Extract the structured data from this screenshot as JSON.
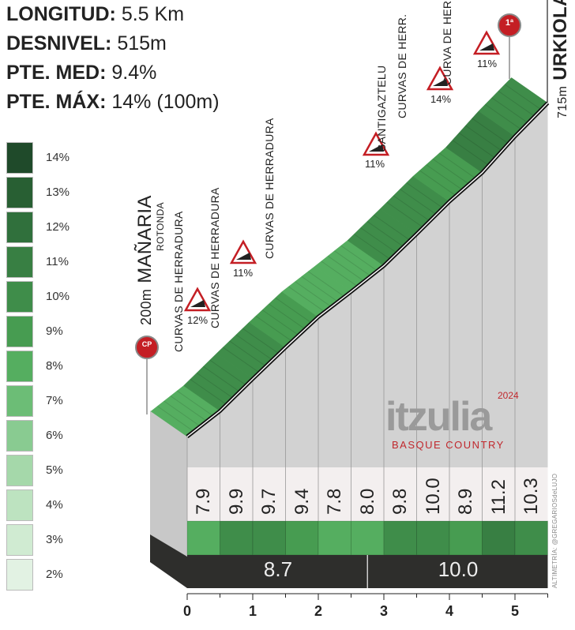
{
  "stats": [
    {
      "label": "LONGITUD:",
      "value": "5.5 Km"
    },
    {
      "label": "DESNIVEL:",
      "value": "515m"
    },
    {
      "label": "PTE. MED:",
      "value": "9.4%"
    },
    {
      "label": "PTE. MÁX:",
      "value": "14% (100m)"
    }
  ],
  "legend": [
    {
      "label": "14%",
      "color": "#1f4a2a"
    },
    {
      "label": "13%",
      "color": "#285f33"
    },
    {
      "label": "12%",
      "color": "#30703c"
    },
    {
      "label": "11%",
      "color": "#387f43"
    },
    {
      "label": "10%",
      "color": "#3f8d4a"
    },
    {
      "label": "9%",
      "color": "#479c51"
    },
    {
      "label": "8%",
      "color": "#55ae60"
    },
    {
      "label": "7%",
      "color": "#6cbd76"
    },
    {
      "label": "6%",
      "color": "#89cb91"
    },
    {
      "label": "5%",
      "color": "#a5d8aa"
    },
    {
      "label": "4%",
      "color": "#bde3c0"
    },
    {
      "label": "3%",
      "color": "#d0ebd2"
    },
    {
      "label": "2%",
      "color": "#e2f2e3"
    }
  ],
  "start": {
    "altitude": "200m",
    "name": "MAÑARIA",
    "badge": "CP"
  },
  "finish": {
    "altitude": "715m",
    "name": "URKIOLA",
    "badge": "1ª"
  },
  "annotations": {
    "rotonda": "ROTONDA",
    "curvas1": "CURVAS DE HERRADURA",
    "curvas2": "CURVAS DE HERRADURA",
    "curvas3": "CURVAS DE HERRADURA",
    "santigaztelu": "SANTIGAZTELU",
    "curvas4": "CURVAS DE HERR.",
    "curva5": "CURVA DE HERR.",
    "warn1": "12%",
    "warn2": "11%",
    "warn3": "11%",
    "warn4": "14%",
    "warn5": "11%"
  },
  "logo": {
    "name": "itzulia",
    "year": "2024",
    "subtitle": "BASQUE COUNTRY"
  },
  "credit": "ALTIMETRÍA: @GREGARIOSdeLUJO",
  "chart_data": {
    "type": "area",
    "xlabel": "",
    "ylabel": "",
    "xlim": [
      0,
      5.5
    ],
    "x_ticks": [
      "0",
      "1",
      "2",
      "3",
      "4",
      "5"
    ],
    "segment_length_km": 0.5,
    "segment_gradients": [
      7.9,
      9.9,
      9.7,
      9.4,
      7.8,
      8.0,
      9.8,
      10.0,
      8.9,
      11.2,
      10.3
    ],
    "segment_labels": [
      "7.9",
      "9.9",
      "9.7",
      "9.4",
      "7.8",
      "8.0",
      "9.8",
      "10.0",
      "8.9",
      "11.2",
      "10.3"
    ],
    "sector_averages": [
      {
        "from_km": 0,
        "to_km": 2.75,
        "value": "8.7"
      },
      {
        "from_km": 2.75,
        "to_km": 5.5,
        "value": "10.0"
      }
    ],
    "start_elevation_m": 200,
    "end_elevation_m": 715
  }
}
